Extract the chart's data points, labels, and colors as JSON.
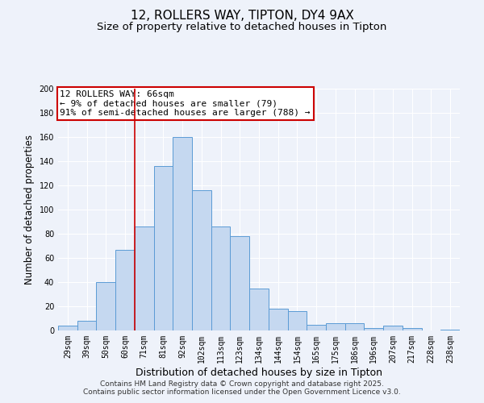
{
  "title1": "12, ROLLERS WAY, TIPTON, DY4 9AX",
  "title2": "Size of property relative to detached houses in Tipton",
  "xlabel": "Distribution of detached houses by size in Tipton",
  "ylabel": "Number of detached properties",
  "bar_labels": [
    "29sqm",
    "39sqm",
    "50sqm",
    "60sqm",
    "71sqm",
    "81sqm",
    "92sqm",
    "102sqm",
    "113sqm",
    "123sqm",
    "134sqm",
    "144sqm",
    "154sqm",
    "165sqm",
    "175sqm",
    "186sqm",
    "196sqm",
    "207sqm",
    "217sqm",
    "228sqm",
    "238sqm"
  ],
  "bar_values": [
    4,
    8,
    40,
    67,
    86,
    136,
    160,
    116,
    86,
    78,
    35,
    18,
    16,
    5,
    6,
    6,
    2,
    4,
    2,
    0,
    1
  ],
  "bar_color": "#c5d8f0",
  "bar_edge_color": "#5b9bd5",
  "vline_x": 3.5,
  "vline_color": "#cc0000",
  "annotation_title": "12 ROLLERS WAY: 66sqm",
  "annotation_line1": "← 9% of detached houses are smaller (79)",
  "annotation_line2": "91% of semi-detached houses are larger (788) →",
  "annotation_box_color": "#cc0000",
  "ylim": [
    0,
    200
  ],
  "yticks": [
    0,
    20,
    40,
    60,
    80,
    100,
    120,
    140,
    160,
    180,
    200
  ],
  "footer1": "Contains HM Land Registry data © Crown copyright and database right 2025.",
  "footer2": "Contains public sector information licensed under the Open Government Licence v3.0.",
  "bg_color": "#eef2fa",
  "plot_bg_color": "#eef2fa",
  "grid_color": "#ffffff",
  "title1_fontsize": 11,
  "title2_fontsize": 9.5,
  "xlabel_fontsize": 9,
  "ylabel_fontsize": 8.5,
  "tick_fontsize": 7,
  "annotation_fontsize": 8,
  "footer_fontsize": 6.5
}
